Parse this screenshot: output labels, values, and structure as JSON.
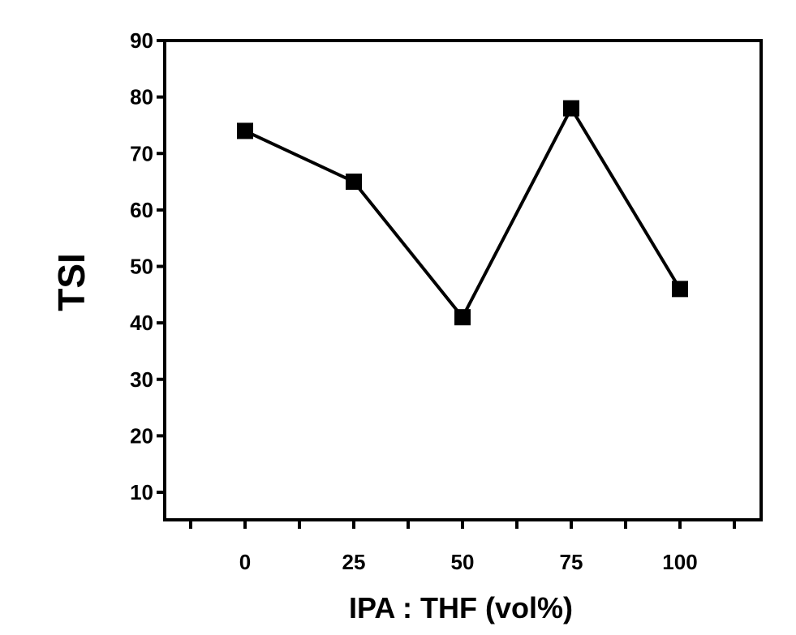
{
  "chart_data": {
    "type": "line",
    "title": "",
    "xlabel": "IPA : THF (vol%)",
    "ylabel": "TSI",
    "categories": [
      "0",
      "25",
      "50",
      "75",
      "100"
    ],
    "x": [
      0,
      25,
      50,
      75,
      100
    ],
    "series": [
      {
        "name": "TSI",
        "values": [
          74,
          65,
          41,
          78,
          46
        ],
        "marker": "square",
        "color": "#000000"
      }
    ],
    "xlim": [
      -12.5,
      112.5
    ],
    "ylim": [
      5,
      90
    ],
    "yticks": [
      10,
      20,
      30,
      40,
      50,
      60,
      70,
      80,
      90
    ],
    "xticks_labeled": [
      0,
      25,
      50,
      75,
      100
    ],
    "xticks_minor": [
      -12.5,
      12.5,
      37.5,
      62.5,
      87.5,
      112.5
    ],
    "grid": false,
    "legend": null
  },
  "style": {
    "line_color": "#000000",
    "background": "#ffffff"
  }
}
